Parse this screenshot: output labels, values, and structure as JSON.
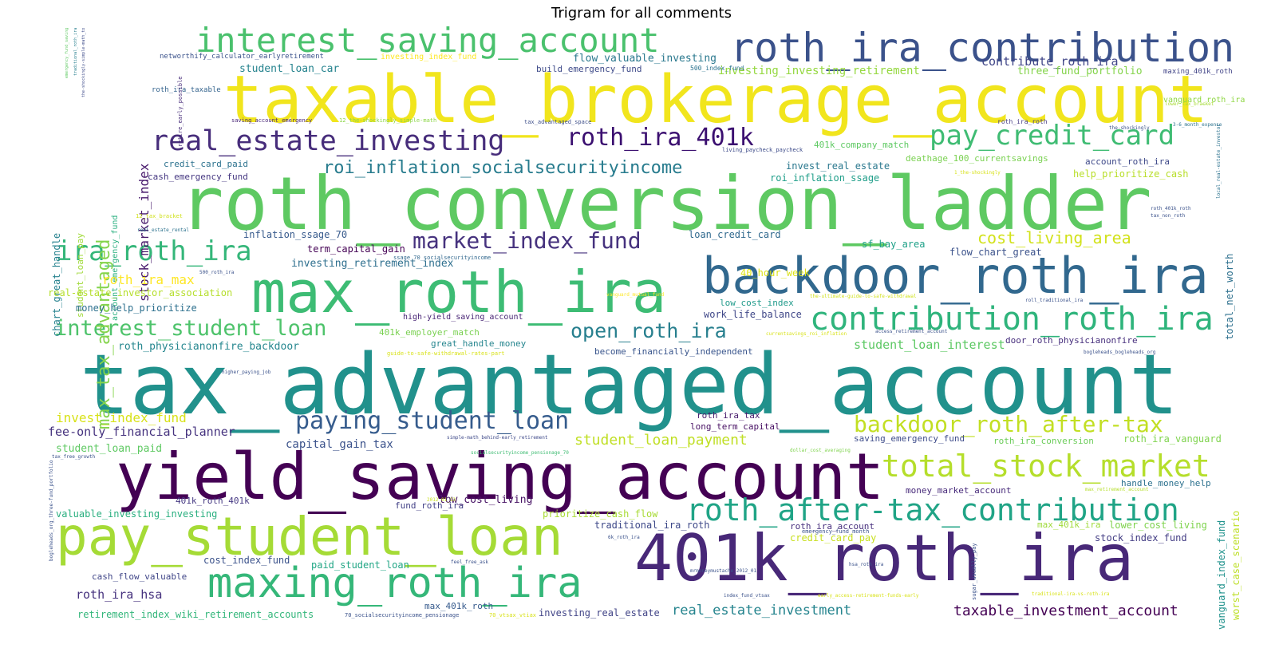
{
  "title": "Trigram for all comments",
  "words": [
    {
      "text": "tax_advantaged_account",
      "color": "#21918c"
    },
    {
      "text": "roth_conversion_ladder",
      "color": "#5ec962"
    },
    {
      "text": "taxable_brokerage_account",
      "color": "#f1e51d"
    },
    {
      "text": "yield_saving_account",
      "color": "#440154"
    },
    {
      "text": "401k_roth_ira",
      "color": "#482878"
    },
    {
      "text": "max_roth_ira",
      "color": "#3dbc74"
    },
    {
      "text": "backdoor_roth_ira",
      "color": "#31688e"
    },
    {
      "text": "pay_student_loan",
      "color": "#a5db36"
    },
    {
      "text": "roth_ira_contribution",
      "color": "#3b528b"
    },
    {
      "text": "interest_saving_account",
      "color": "#4ac16d"
    },
    {
      "text": "maxing_roth_ira",
      "color": "#35b779"
    },
    {
      "text": "contribution_roth_ira",
      "color": "#2fb47c"
    },
    {
      "text": "roth_after-tax_contribution",
      "color": "#20a486"
    },
    {
      "text": "total_stock_market",
      "color": "#b5de2b"
    },
    {
      "text": "real_estate_investing",
      "color": "#472d7b"
    },
    {
      "text": "pay_credit_card",
      "color": "#3fbc73"
    },
    {
      "text": "roth_ira_401k",
      "color": "#3b0f70"
    },
    {
      "text": "ira_roth_ira",
      "color": "#34b679"
    },
    {
      "text": "market_index_fund",
      "color": "#46327e"
    },
    {
      "text": "backdoor_roth_after-tax",
      "color": "#c2df23"
    },
    {
      "text": "paying_student_loan",
      "color": "#365c8d"
    },
    {
      "text": "interest_student_loan",
      "color": "#4ec36b"
    },
    {
      "text": "open_roth_ira",
      "color": "#277f8e"
    },
    {
      "text": "roi_inflation_socialsecurityincome",
      "color": "#287c8e"
    },
    {
      "text": "cost_living_area",
      "color": "#d2e21b"
    },
    {
      "text": "max_tax_advantaged",
      "color": "#84d44b"
    },
    {
      "text": "stock_market_index",
      "color": "#481a6c"
    },
    {
      "text": "contribute_roth_ira",
      "color": "#404688"
    },
    {
      "text": "three_fund_portfolio",
      "color": "#84d44b"
    },
    {
      "text": "investing_investing_retirement",
      "color": "#95d840"
    },
    {
      "text": "flow_valuable_investing",
      "color": "#2a788e"
    },
    {
      "text": "student_loan_car",
      "color": "#25838e"
    },
    {
      "text": "build_emergency_fund",
      "color": "#3e4a89"
    },
    {
      "text": "networthify_calculator_earlyretirement",
      "color": "#3b528b"
    },
    {
      "text": "investing_index_fund",
      "color": "#fde725"
    },
    {
      "text": "roth_ira_taxable",
      "color": "#33638d"
    },
    {
      "text": "500_index_fund",
      "color": "#2c728e"
    },
    {
      "text": "maxing_401k_roth",
      "color": "#414487"
    },
    {
      "text": "vanguard_roth_ira",
      "color": "#8fd744"
    },
    {
      "text": "401k_company_match",
      "color": "#5ec962"
    },
    {
      "text": "invest_real_estate",
      "color": "#2a788e"
    },
    {
      "text": "roi_inflation_ssage",
      "color": "#1f9e89"
    },
    {
      "text": "deathage_100_currentsavings",
      "color": "#7ad151"
    },
    {
      "text": "account_roth_ira",
      "color": "#3e4989"
    },
    {
      "text": "help_prioritize_cash",
      "color": "#b8de29"
    },
    {
      "text": "total_net_worth",
      "color": "#2d708e"
    },
    {
      "text": "credit_card_paid",
      "color": "#2c728e"
    },
    {
      "text": "cash_emergency_fund",
      "color": "#453781"
    },
    {
      "text": "chart_great_handle",
      "color": "#26828e"
    },
    {
      "text": "student_loan_pay",
      "color": "#a0da39"
    },
    {
      "text": "account_emergency_fund",
      "color": "#29af7f"
    },
    {
      "text": "inflation_ssage_70",
      "color": "#375a8c"
    },
    {
      "text": "term_capital_gain",
      "color": "#440154"
    },
    {
      "text": "loan_credit_card",
      "color": "#30698e"
    },
    {
      "text": "sf_bay_area",
      "color": "#1fa188"
    },
    {
      "text": "flow_chart_great",
      "color": "#3b528b"
    },
    {
      "text": "40_hour_week",
      "color": "#dde318"
    },
    {
      "text": "investing_retirement_index",
      "color": "#2e6f8e"
    },
    {
      "text": "roth_ira_max",
      "color": "#fde725"
    },
    {
      "text": "real-estate_investor_association",
      "color": "#b5de2b"
    },
    {
      "text": "money_help_prioritize",
      "color": "#2d708e"
    },
    {
      "text": "low_cost_index",
      "color": "#1f9a8a"
    },
    {
      "text": "work_life_balance",
      "color": "#3f4788"
    },
    {
      "text": "401k_employer_match",
      "color": "#7ad151"
    },
    {
      "text": "great_handle_money",
      "color": "#25858e"
    },
    {
      "text": "roth_physicianonfire_backdoor",
      "color": "#24868e"
    },
    {
      "text": "become_financially_independent",
      "color": "#39558c"
    },
    {
      "text": "student_loan_interest",
      "color": "#5cc863"
    },
    {
      "text": "door_roth_physicianonfire",
      "color": "#472f7d"
    },
    {
      "text": "invest_index_fund",
      "color": "#d8e219"
    },
    {
      "text": "fee-only_financial_planner",
      "color": "#46337f"
    },
    {
      "text": "capital_gain_tax",
      "color": "#3b528b"
    },
    {
      "text": "roth_ira_tax",
      "color": "#481b6d"
    },
    {
      "text": "long_term_capital",
      "color": "#471063"
    },
    {
      "text": "student_loan_payment",
      "color": "#c0df25"
    },
    {
      "text": "saving_emergency_fund",
      "color": "#3e4c8a"
    },
    {
      "text": "roth_ira_conversion",
      "color": "#6ccd5a"
    },
    {
      "text": "roth_ira_vanguard",
      "color": "#7fd34e"
    },
    {
      "text": "student_loan_paid",
      "color": "#5ec962"
    },
    {
      "text": "money_market_account",
      "color": "#472a7a"
    },
    {
      "text": "handle_money_help",
      "color": "#2c718e"
    },
    {
      "text": "401k_roth_401k",
      "color": "#453882"
    },
    {
      "text": "fund_roth_ira",
      "color": "#424086"
    },
    {
      "text": "low_cost_living",
      "color": "#471365"
    },
    {
      "text": "valuable_investing_investing",
      "color": "#29af7f"
    },
    {
      "text": "prioritize_cash_flow",
      "color": "#a8db34"
    },
    {
      "text": "traditional_ira_roth",
      "color": "#3e4989"
    },
    {
      "text": "roth_ira_account",
      "color": "#472f7d"
    },
    {
      "text": "max_401k_ira",
      "color": "#9fda3a"
    },
    {
      "text": "lower_cost_living",
      "color": "#7fd34e"
    },
    {
      "text": "vanguard_index_fund",
      "color": "#20928c"
    },
    {
      "text": "worst_case_scenario",
      "color": "#bddf26"
    },
    {
      "text": "credit_card_pay",
      "color": "#c8e020"
    },
    {
      "text": "stock_index_fund",
      "color": "#433d84"
    },
    {
      "text": "cost_index_fund",
      "color": "#3b528b"
    },
    {
      "text": "paid_student_loan",
      "color": "#21a685"
    },
    {
      "text": "cash_flow_valuable",
      "color": "#404688"
    },
    {
      "text": "roth_ira_hsa",
      "color": "#46327e"
    },
    {
      "text": "max_401k_roth",
      "color": "#375b8d"
    },
    {
      "text": "retirement_index_wiki_retirement_accounts",
      "color": "#32b67a"
    },
    {
      "text": "investing_real_estate",
      "color": "#414487"
    },
    {
      "text": "real_estate_investment",
      "color": "#25848e"
    },
    {
      "text": "taxable_investment_account",
      "color": "#440154"
    },
    {
      "text": "high-yield_saving_account",
      "color": "#482475"
    },
    {
      "text": "saving_account_emergency",
      "color": "#482576"
    },
    {
      "text": "tax_advantaged_space",
      "color": "#3d4e8a"
    },
    {
      "text": "roth_ira_roth",
      "color": "#443a83"
    },
    {
      "text": "living_paycheck_paycheck",
      "color": "#3e4c8a"
    },
    {
      "text": "12_the-shockingly_simple-math",
      "color": "#8bd646"
    },
    {
      "text": "emergency_fund_saving",
      "color": "#5ec962"
    },
    {
      "text": "traditional_roth_ira",
      "color": "#277f8e"
    },
    {
      "text": "the-shockingly-simple-math_to",
      "color": "#3e4c8a"
    },
    {
      "text": "retire_early_possible",
      "color": "#472c7a"
    },
    {
      "text": "3-6_month_expense",
      "color": "#2c728e"
    },
    {
      "text": "lower_tax_bracket",
      "color": "#a8db34"
    },
    {
      "text": "12_tax_bracket",
      "color": "#d0e11c"
    },
    {
      "text": "real_estate_rental",
      "color": "#2c728e"
    },
    {
      "text": "ssage_70_socialsecurityincome",
      "color": "#31688e"
    },
    {
      "text": "500_roth_ira",
      "color": "#3b528b"
    },
    {
      "text": "roth_401k_roth",
      "color": "#3b528b"
    },
    {
      "text": "tax_non_roth",
      "color": "#3b528b"
    },
    {
      "text": "local_real-estate_investor",
      "color": "#2c728e"
    },
    {
      "text": "vanguard_mutual_fund",
      "color": "#fde725"
    },
    {
      "text": "the-ultimate-guide-to-safe-withdrawal",
      "color": "#d2e21b"
    },
    {
      "text": "currentsavings_roi_inflation",
      "color": "#d8e219"
    },
    {
      "text": "access_retirement_account",
      "color": "#3b528b"
    },
    {
      "text": "roll_traditional_ira",
      "color": "#3b528b"
    },
    {
      "text": "bogleheads_bogleheads_org",
      "color": "#3b528b"
    },
    {
      "text": "guide-to-safe-withdrawal-rates-part",
      "color": "#d8e219"
    },
    {
      "text": "higher_paying_job",
      "color": "#3b528b"
    },
    {
      "text": "simple-math_behind-early_retirement",
      "color": "#3e4989"
    },
    {
      "text": "socialsecurityincome_pensionage_70",
      "color": "#3fbc73"
    },
    {
      "text": "dollar_cost_averaging",
      "color": "#7fd34e"
    },
    {
      "text": "tax_free_growth",
      "color": "#3b528b"
    },
    {
      "text": "max_retirement_account",
      "color": "#b5de2b"
    },
    {
      "text": "2012_01_13",
      "color": "#c8e020"
    },
    {
      "text": "6k_roth_ira",
      "color": "#3b528b"
    },
    {
      "text": "emergency_fund_month",
      "color": "#3b528b"
    },
    {
      "text": "bogleheads_org_three-fund_portfolio",
      "color": "#3b528b"
    },
    {
      "text": "feel_free_ask",
      "color": "#3b528b"
    },
    {
      "text": "mrmoneymustache_2012_01",
      "color": "#3b528b"
    },
    {
      "text": "hsa_roth_ira",
      "color": "#3b528b"
    },
    {
      "text": "index_fund_vtsax",
      "color": "#3b528b"
    },
    {
      "text": "early_access-retirement-funds-early",
      "color": "#d8e219"
    },
    {
      "text": "traditional-ira-vs-roth-ira",
      "color": "#d8e219"
    },
    {
      "text": "70_socialsecurityincome_pensionage",
      "color": "#3b528b"
    },
    {
      "text": "70_vtsax_vtiax",
      "color": "#d8e219"
    },
    {
      "text": "the-shockingly",
      "color": "#3b528b"
    },
    {
      "text": "1_the-shockingly",
      "color": "#d8e219"
    },
    {
      "text": "sugar_usually_pay",
      "color": "#3b528b"
    }
  ]
}
